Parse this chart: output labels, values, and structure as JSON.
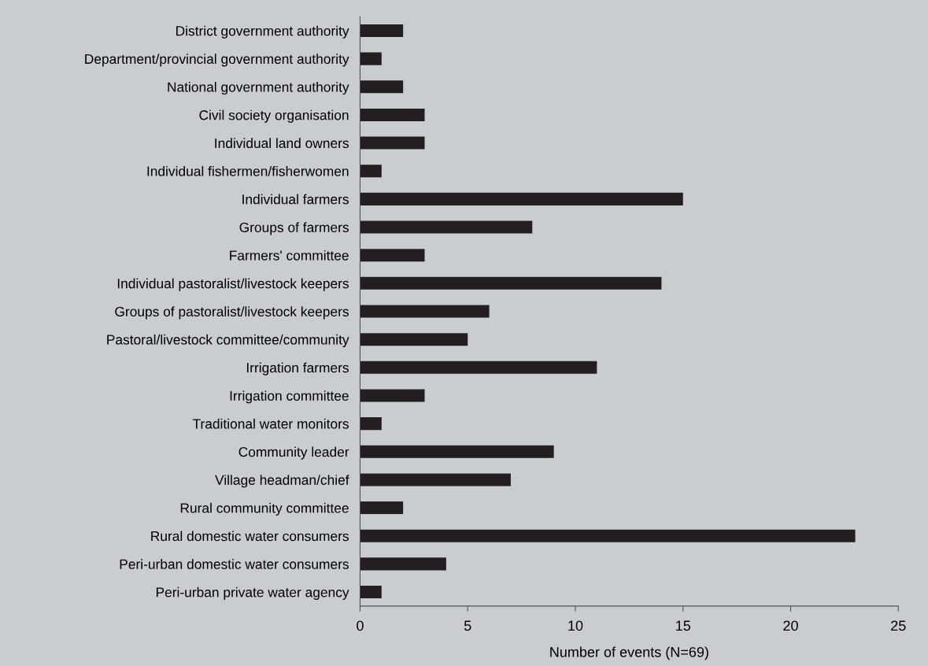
{
  "chart_data": {
    "type": "bar",
    "orientation": "horizontal",
    "xlabel": "Number of events (N=69)",
    "categories": [
      "District government authority",
      "Department/provincial government authority",
      "National government authority",
      "Civil society organisation",
      "Individual land owners",
      "Individual fishermen/fisherwomen",
      "Individual farmers",
      "Groups of farmers",
      "Farmers' committee",
      "Individual pastoralist/livestock keepers",
      "Groups of pastoralist/livestock keepers",
      "Pastoral/livestock committee/community",
      "Irrigation farmers",
      "Irrigation committee",
      "Traditional water monitors",
      "Community leader",
      "Village headman/chief",
      "Rural community committee",
      "Rural domestic water consumers",
      "Peri-urban domestic water consumers",
      "Peri-urban private water agency"
    ],
    "values": [
      2,
      1,
      2,
      3,
      3,
      1,
      15,
      8,
      3,
      14,
      6,
      5,
      11,
      3,
      1,
      9,
      7,
      2,
      23,
      4,
      1
    ],
    "color": "#231f20",
    "xlim": [
      0,
      25
    ],
    "xticks": [
      0,
      5,
      10,
      15,
      20,
      25
    ],
    "grid": false,
    "legend": false
  }
}
